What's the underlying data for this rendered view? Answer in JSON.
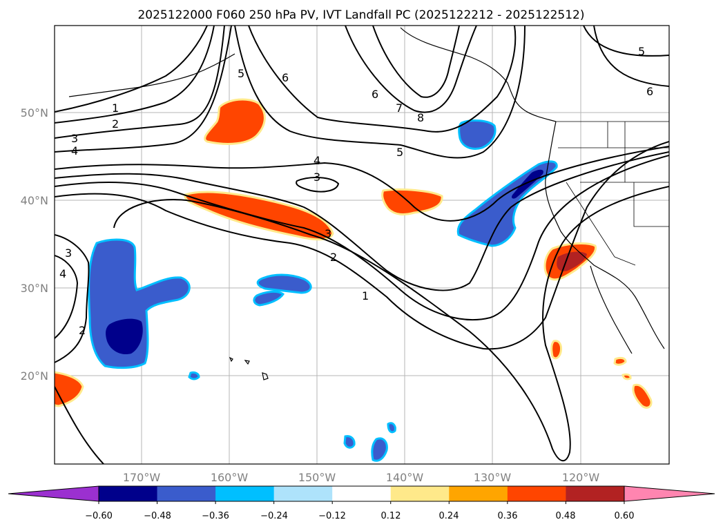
{
  "title": "2025122000 F060 250 hPa PV, IVT Landfall PC (2025122212 - 2025122512)",
  "map": {
    "lat_ticks": [
      "50°N",
      "40°N",
      "30°N",
      "20°N"
    ],
    "lon_ticks": [
      "170°W",
      "160°W",
      "150°W",
      "140°W",
      "130°W",
      "120°W"
    ],
    "contour_labels": [
      "1",
      "2",
      "3",
      "4",
      "5",
      "6",
      "7",
      "8",
      "5",
      "6",
      "4",
      "3",
      "3",
      "4",
      "2",
      "1",
      "2",
      "3",
      "5",
      "6"
    ]
  },
  "colorbar": {
    "tick_labels": [
      "−0.60",
      "−0.48",
      "−0.36",
      "−0.24",
      "−0.12",
      "0.12",
      "0.24",
      "0.36",
      "0.48",
      "0.60"
    ],
    "colors": [
      "#9b30d0",
      "#00008b",
      "#3a5ccc",
      "#00bfff",
      "#aee3fb",
      "#ffffff",
      "#ffe98a",
      "#ffa500",
      "#ff4500",
      "#b22222",
      "#ff85b0"
    ]
  }
}
